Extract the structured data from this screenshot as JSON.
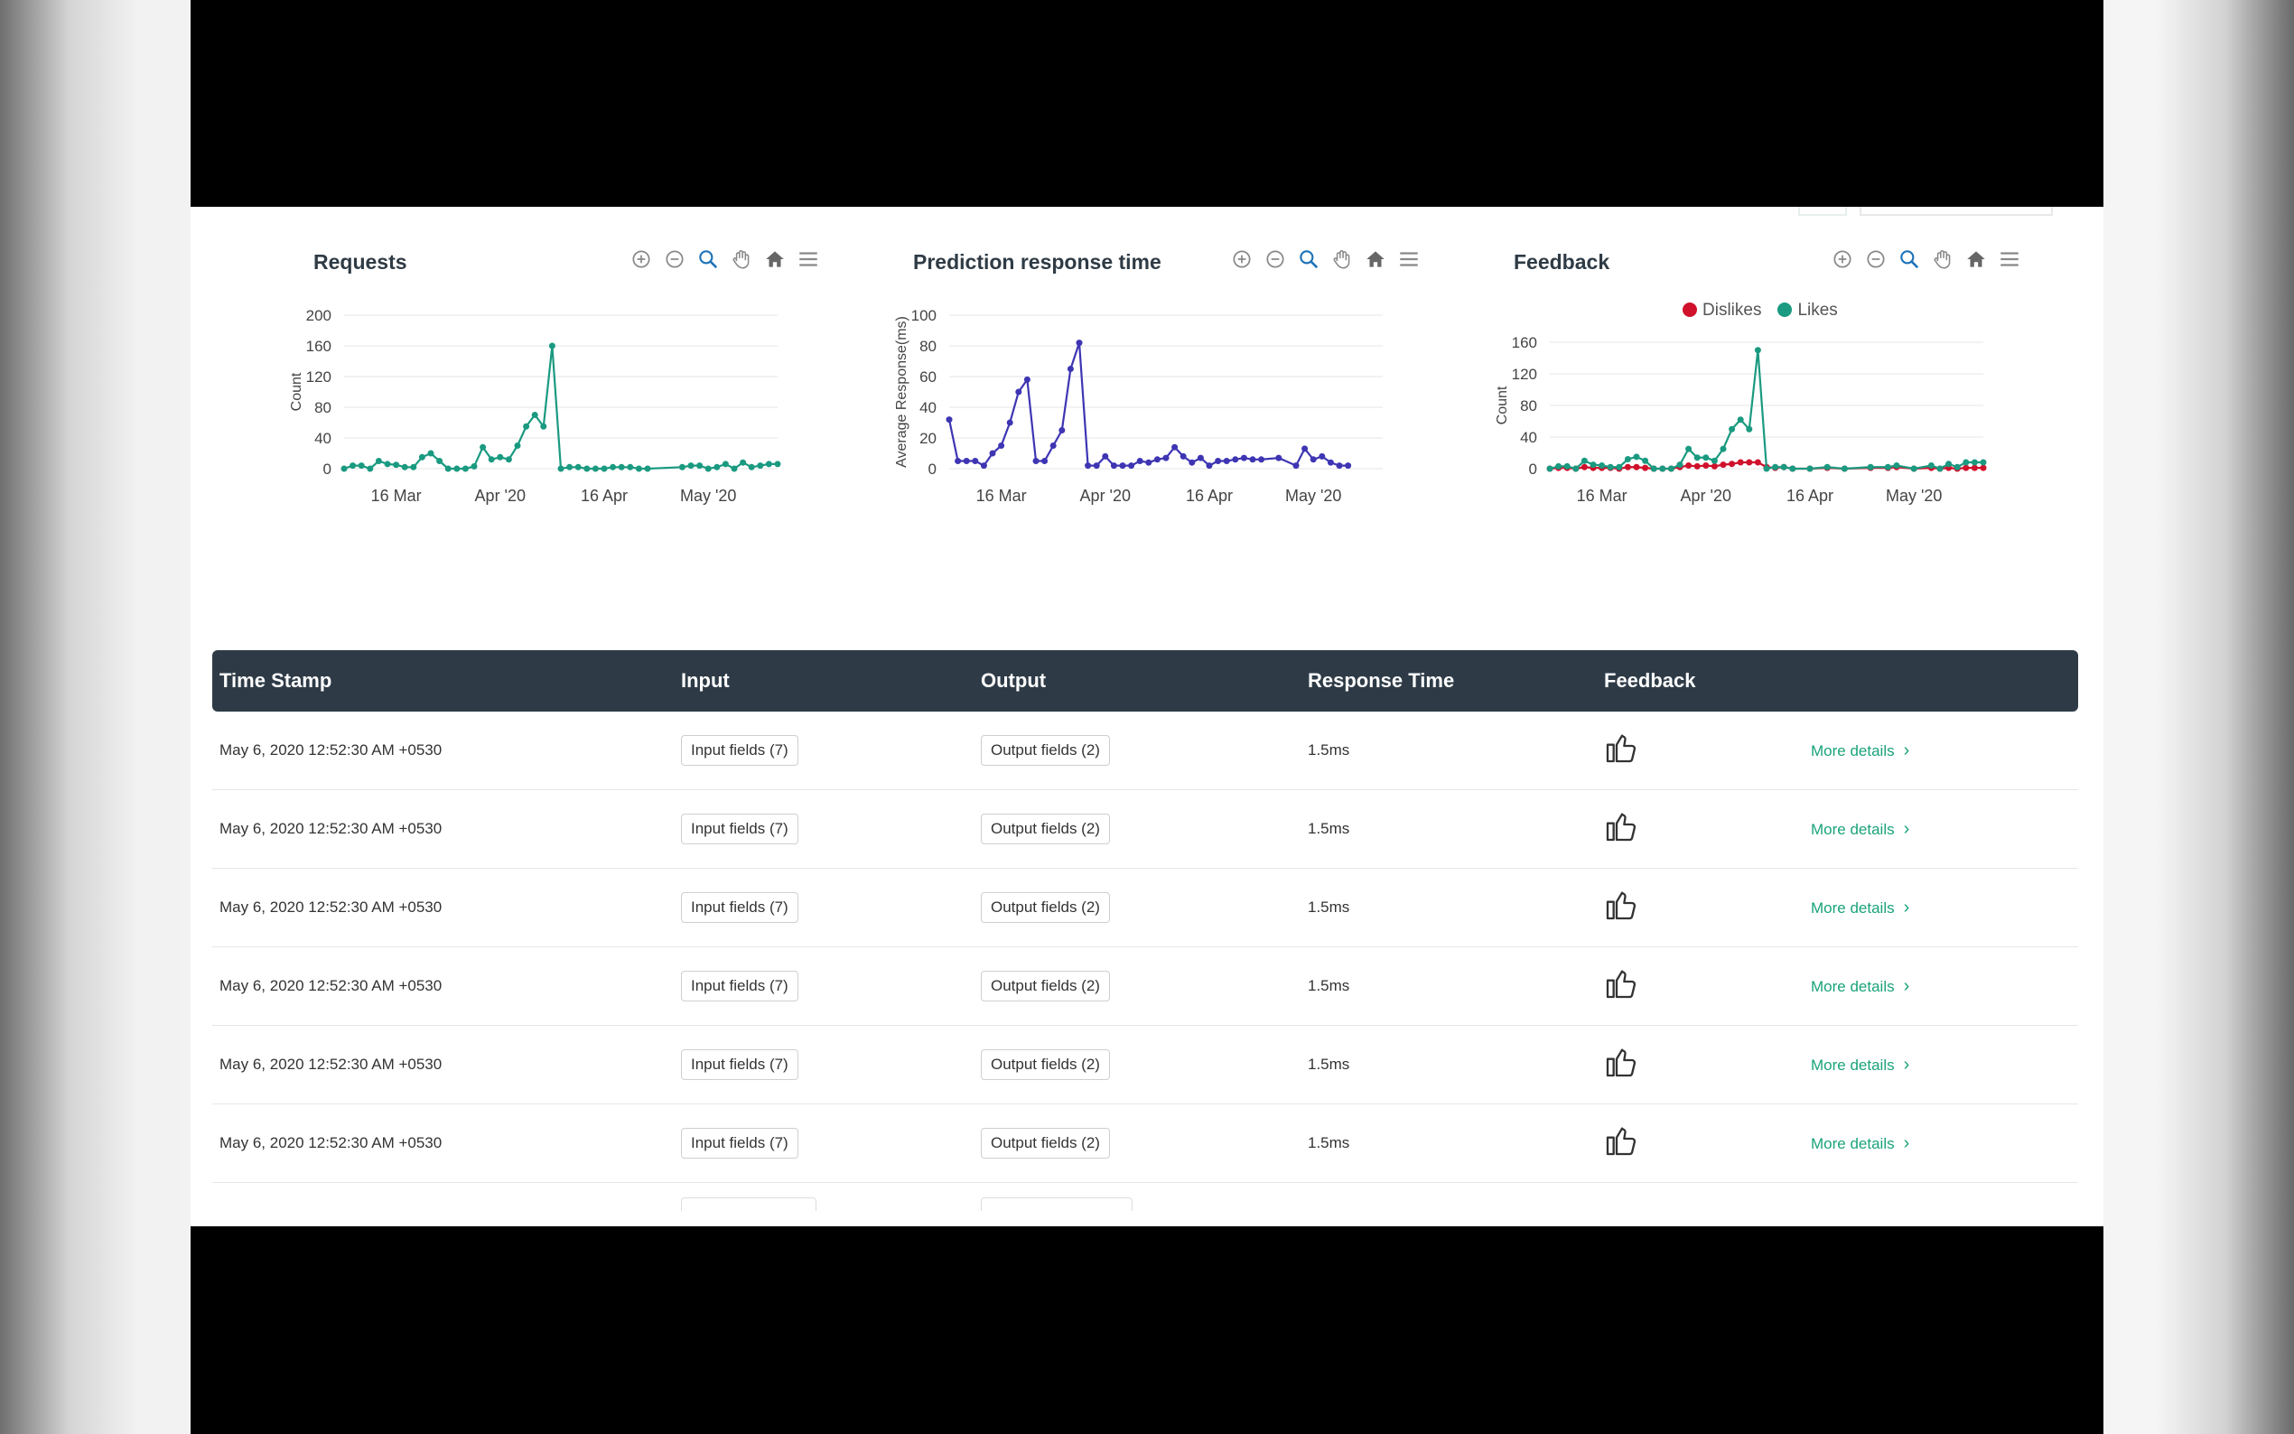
{
  "charts": [
    {
      "title": "Requests",
      "chart_data": {
        "type": "line",
        "ylabel": "Count",
        "ylim": [
          0,
          200
        ],
        "yticks": [
          "0",
          "40",
          "80",
          "120",
          "160",
          "200"
        ],
        "xticks": [
          "16 Mar",
          "Apr '20",
          "16 Apr",
          "May '20"
        ],
        "series": [
          {
            "color": "#1a9a80",
            "values": [
              [
                0,
                0
              ],
              [
                2,
                4
              ],
              [
                4,
                4
              ],
              [
                6,
                0
              ],
              [
                8,
                10
              ],
              [
                10,
                6
              ],
              [
                12,
                5
              ],
              [
                14,
                2
              ],
              [
                16,
                2
              ],
              [
                18,
                15
              ],
              [
                20,
                20
              ],
              [
                22,
                10
              ],
              [
                24,
                0
              ],
              [
                26,
                0
              ],
              [
                28,
                0
              ],
              [
                30,
                3
              ],
              [
                32,
                28
              ],
              [
                34,
                12
              ],
              [
                36,
                15
              ],
              [
                38,
                12
              ],
              [
                40,
                30
              ],
              [
                42,
                55
              ],
              [
                44,
                70
              ],
              [
                46,
                55
              ],
              [
                48,
                160
              ],
              [
                50,
                0
              ],
              [
                52,
                2
              ],
              [
                54,
                2
              ],
              [
                56,
                0
              ],
              [
                58,
                0
              ],
              [
                60,
                0
              ],
              [
                62,
                2
              ],
              [
                64,
                2
              ],
              [
                66,
                2
              ],
              [
                68,
                0
              ],
              [
                70,
                0
              ],
              [
                78,
                2
              ],
              [
                80,
                4
              ],
              [
                82,
                4
              ],
              [
                84,
                0
              ],
              [
                86,
                2
              ],
              [
                88,
                6
              ],
              [
                90,
                0
              ],
              [
                92,
                8
              ],
              [
                94,
                2
              ],
              [
                96,
                4
              ],
              [
                98,
                6
              ],
              [
                100,
                6
              ]
            ]
          }
        ]
      }
    },
    {
      "title": "Prediction response time",
      "chart_data": {
        "type": "line",
        "ylabel": "Average Response(ms)",
        "ylim": [
          0,
          100
        ],
        "yticks": [
          "0",
          "20",
          "40",
          "60",
          "80",
          "100"
        ],
        "xticks": [
          "16 Mar",
          "Apr '20",
          "16 Apr",
          "May '20"
        ],
        "series": [
          {
            "color": "#3e35b3",
            "values": [
              [
                0,
                32
              ],
              [
                2,
                5
              ],
              [
                4,
                5
              ],
              [
                6,
                5
              ],
              [
                8,
                2
              ],
              [
                10,
                10
              ],
              [
                12,
                15
              ],
              [
                14,
                30
              ],
              [
                16,
                50
              ],
              [
                18,
                58
              ],
              [
                20,
                5
              ],
              [
                22,
                5
              ],
              [
                24,
                15
              ],
              [
                26,
                25
              ],
              [
                28,
                65
              ],
              [
                30,
                82
              ],
              [
                32,
                2
              ],
              [
                34,
                2
              ],
              [
                36,
                8
              ],
              [
                38,
                2
              ],
              [
                40,
                2
              ],
              [
                42,
                2
              ],
              [
                44,
                5
              ],
              [
                46,
                4
              ],
              [
                48,
                6
              ],
              [
                50,
                7
              ],
              [
                52,
                14
              ],
              [
                54,
                8
              ],
              [
                56,
                4
              ],
              [
                58,
                7
              ],
              [
                60,
                2
              ],
              [
                62,
                5
              ],
              [
                64,
                5
              ],
              [
                66,
                6
              ],
              [
                68,
                7
              ],
              [
                70,
                6
              ],
              [
                72,
                6
              ],
              [
                76,
                7
              ],
              [
                80,
                2
              ],
              [
                82,
                13
              ],
              [
                84,
                6
              ],
              [
                86,
                8
              ],
              [
                88,
                4
              ],
              [
                90,
                2
              ],
              [
                92,
                2
              ]
            ]
          }
        ]
      }
    },
    {
      "title": "Feedback",
      "legend": [
        {
          "label": "Dislikes",
          "color": "#d0112b"
        },
        {
          "label": "Likes",
          "color": "#1a9a80"
        }
      ],
      "chart_data": {
        "type": "line",
        "ylabel": "Count",
        "ylim": [
          0,
          160
        ],
        "yticks": [
          "0",
          "40",
          "80",
          "120",
          "160"
        ],
        "xticks": [
          "16 Mar",
          "Apr '20",
          "16 Apr",
          "May '20"
        ],
        "series": [
          {
            "name": "Likes",
            "color": "#1a9a80",
            "values": [
              [
                0,
                0
              ],
              [
                2,
                3
              ],
              [
                4,
                3
              ],
              [
                6,
                0
              ],
              [
                8,
                10
              ],
              [
                10,
                5
              ],
              [
                12,
                4
              ],
              [
                14,
                2
              ],
              [
                16,
                2
              ],
              [
                18,
                12
              ],
              [
                20,
                15
              ],
              [
                22,
                10
              ],
              [
                24,
                0
              ],
              [
                26,
                0
              ],
              [
                28,
                0
              ],
              [
                30,
                5
              ],
              [
                32,
                25
              ],
              [
                34,
                14
              ],
              [
                36,
                14
              ],
              [
                38,
                10
              ],
              [
                40,
                25
              ],
              [
                42,
                50
              ],
              [
                44,
                62
              ],
              [
                46,
                50
              ],
              [
                48,
                150
              ],
              [
                50,
                0
              ],
              [
                52,
                2
              ],
              [
                54,
                2
              ],
              [
                56,
                0
              ],
              [
                60,
                0
              ],
              [
                64,
                2
              ],
              [
                68,
                0
              ],
              [
                74,
                2
              ],
              [
                78,
                2
              ],
              [
                80,
                4
              ],
              [
                84,
                0
              ],
              [
                88,
                4
              ],
              [
                90,
                0
              ],
              [
                92,
                6
              ],
              [
                94,
                2
              ],
              [
                96,
                8
              ],
              [
                98,
                8
              ],
              [
                100,
                8
              ]
            ]
          },
          {
            "name": "Dislikes",
            "color": "#d0112b",
            "values": [
              [
                0,
                0
              ],
              [
                2,
                1
              ],
              [
                4,
                1
              ],
              [
                6,
                0
              ],
              [
                8,
                2
              ],
              [
                10,
                1
              ],
              [
                12,
                1
              ],
              [
                14,
                1
              ],
              [
                16,
                0
              ],
              [
                18,
                2
              ],
              [
                20,
                2
              ],
              [
                22,
                1
              ],
              [
                24,
                0
              ],
              [
                26,
                0
              ],
              [
                28,
                0
              ],
              [
                30,
                2
              ],
              [
                32,
                4
              ],
              [
                34,
                3
              ],
              [
                36,
                4
              ],
              [
                38,
                3
              ],
              [
                40,
                5
              ],
              [
                42,
                6
              ],
              [
                44,
                8
              ],
              [
                46,
                8
              ],
              [
                48,
                8
              ],
              [
                50,
                2
              ],
              [
                52,
                1
              ],
              [
                54,
                2
              ],
              [
                56,
                0
              ],
              [
                60,
                0
              ],
              [
                64,
                1
              ],
              [
                68,
                0
              ],
              [
                74,
                1
              ],
              [
                78,
                1
              ],
              [
                80,
                2
              ],
              [
                84,
                0
              ],
              [
                88,
                1
              ],
              [
                90,
                0
              ],
              [
                92,
                1
              ],
              [
                94,
                0
              ],
              [
                96,
                1
              ],
              [
                98,
                1
              ],
              [
                100,
                1
              ]
            ]
          }
        ]
      }
    }
  ],
  "toolbar_icons": [
    "zoom-in-icon",
    "zoom-out-icon",
    "selection-zoom-icon",
    "pan-hand-icon",
    "reset-home-icon",
    "menu-icon"
  ],
  "table": {
    "headers": [
      "Time Stamp",
      "Input",
      "Output",
      "Response Time",
      "Feedback"
    ],
    "rows": [
      {
        "timestamp": "May 6, 2020 12:52:30 AM +0530",
        "input": "Input fields (7)",
        "output": "Output fields (2)",
        "response": "1.5ms",
        "feedback": "thumbs-up-icon",
        "more": "More details"
      },
      {
        "timestamp": "May 6, 2020 12:52:30 AM +0530",
        "input": "Input fields (7)",
        "output": "Output fields (2)",
        "response": "1.5ms",
        "feedback": "thumbs-up-icon",
        "more": "More details"
      },
      {
        "timestamp": "May 6, 2020 12:52:30 AM +0530",
        "input": "Input fields (7)",
        "output": "Output fields (2)",
        "response": "1.5ms",
        "feedback": "thumbs-up-icon",
        "more": "More details"
      },
      {
        "timestamp": "May 6, 2020 12:52:30 AM +0530",
        "input": "Input fields (7)",
        "output": "Output fields (2)",
        "response": "1.5ms",
        "feedback": "thumbs-up-icon",
        "more": "More details"
      },
      {
        "timestamp": "May 6, 2020 12:52:30 AM +0530",
        "input": "Input fields (7)",
        "output": "Output fields (2)",
        "response": "1.5ms",
        "feedback": "thumbs-up-icon",
        "more": "More details"
      },
      {
        "timestamp": "May 6, 2020 12:52:30 AM +0530",
        "input": "Input fields (7)",
        "output": "Output fields (2)",
        "response": "1.5ms",
        "feedback": "thumbs-up-icon",
        "more": "More details"
      }
    ]
  }
}
